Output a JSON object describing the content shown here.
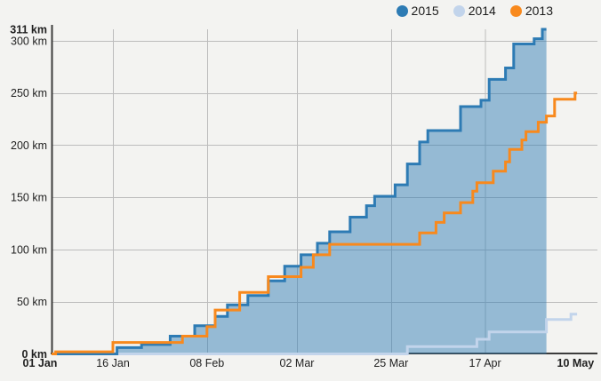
{
  "page": {
    "background": "#f3f3f1"
  },
  "legend": {
    "items": [
      {
        "label": "2015",
        "color": "#2d7bb4"
      },
      {
        "label": "2014",
        "color": "#c2d4eb"
      },
      {
        "label": "2013",
        "color": "#f8891d"
      }
    ]
  },
  "chart_data": {
    "type": "area",
    "subtype": "cumulative-step",
    "title": "",
    "xlabel": "",
    "ylabel": "",
    "x_unit": "day-of-year (0 = 01 Jan)",
    "y_unit": "km",
    "ylim": [
      0,
      311
    ],
    "xlim_days": [
      0,
      133.5
    ],
    "grid_color": "#bcbcbc",
    "axis_color": "#3c3c3c",
    "label_color": "#1f1f1f",
    "x_ticks": [
      {
        "day": 0,
        "label": "01 Jan",
        "bold": true,
        "grid": false
      },
      {
        "day": 15,
        "label": "16 Jan",
        "bold": false,
        "grid": true
      },
      {
        "day": 38,
        "label": "08 Feb",
        "bold": false,
        "grid": true
      },
      {
        "day": 60,
        "label": "02 Mar",
        "bold": false,
        "grid": true
      },
      {
        "day": 83,
        "label": "25 Mar",
        "bold": false,
        "grid": true
      },
      {
        "day": 106,
        "label": "17 Apr",
        "bold": false,
        "grid": true
      },
      {
        "day": 129,
        "label": "10 May",
        "bold": true,
        "grid": false
      }
    ],
    "y_ticks": [
      {
        "km": 0,
        "label": "0 km",
        "bold": true,
        "grid": false
      },
      {
        "km": 50,
        "label": "50 km",
        "bold": false,
        "grid": true
      },
      {
        "km": 100,
        "label": "100 km",
        "bold": false,
        "grid": true
      },
      {
        "km": 150,
        "label": "150 km",
        "bold": false,
        "grid": true
      },
      {
        "km": 200,
        "label": "200 km",
        "bold": false,
        "grid": true
      },
      {
        "km": 250,
        "label": "250 km",
        "bold": false,
        "grid": true
      },
      {
        "km": 300,
        "label": "300 km",
        "bold": false,
        "grid": true
      },
      {
        "km": 311,
        "label": "311 km",
        "bold": true,
        "grid": false
      }
    ],
    "series": [
      {
        "name": "2015",
        "color": "#2d7bb4",
        "fill": "rgba(45,123,180,0.48)",
        "stroke_width": 3,
        "end_day": 121,
        "points": [
          [
            0,
            0
          ],
          [
            16,
            6
          ],
          [
            22,
            9
          ],
          [
            29,
            17
          ],
          [
            35,
            27
          ],
          [
            40,
            36
          ],
          [
            43,
            47
          ],
          [
            48,
            56
          ],
          [
            53,
            70
          ],
          [
            57,
            84
          ],
          [
            61,
            95
          ],
          [
            65,
            106
          ],
          [
            68,
            117
          ],
          [
            73,
            131
          ],
          [
            77,
            142
          ],
          [
            79,
            151
          ],
          [
            84,
            162
          ],
          [
            87,
            182
          ],
          [
            90,
            203
          ],
          [
            92,
            214
          ],
          [
            100,
            237
          ],
          [
            105,
            243
          ],
          [
            107,
            263
          ],
          [
            111,
            274
          ],
          [
            113,
            297
          ],
          [
            118,
            302
          ],
          [
            120,
            311
          ]
        ]
      },
      {
        "name": "2014",
        "color": "#c2d4eb",
        "fill": null,
        "stroke_width": 3,
        "end_day": 128.5,
        "points": [
          [
            0,
            0
          ],
          [
            87,
            7
          ],
          [
            104,
            14
          ],
          [
            107,
            21
          ],
          [
            121,
            33
          ],
          [
            127,
            38
          ]
        ]
      },
      {
        "name": "2013",
        "color": "#f8891d",
        "fill": null,
        "stroke_width": 3,
        "end_day": 128.5,
        "points": [
          [
            0,
            0
          ],
          [
            1,
            2
          ],
          [
            15,
            11
          ],
          [
            32,
            17
          ],
          [
            38,
            26
          ],
          [
            40,
            42
          ],
          [
            46,
            59
          ],
          [
            53,
            74
          ],
          [
            61,
            83
          ],
          [
            64,
            95
          ],
          [
            68,
            105
          ],
          [
            90,
            116
          ],
          [
            94,
            126
          ],
          [
            96,
            135
          ],
          [
            100,
            145
          ],
          [
            103,
            156
          ],
          [
            104,
            164
          ],
          [
            108,
            175
          ],
          [
            111,
            184
          ],
          [
            112,
            196
          ],
          [
            115,
            205
          ],
          [
            116,
            213
          ],
          [
            119,
            222
          ],
          [
            121,
            228
          ],
          [
            123,
            244
          ],
          [
            128,
            250
          ]
        ]
      }
    ],
    "draw_line_order": [
      "2014",
      "2015",
      "2013"
    ]
  }
}
